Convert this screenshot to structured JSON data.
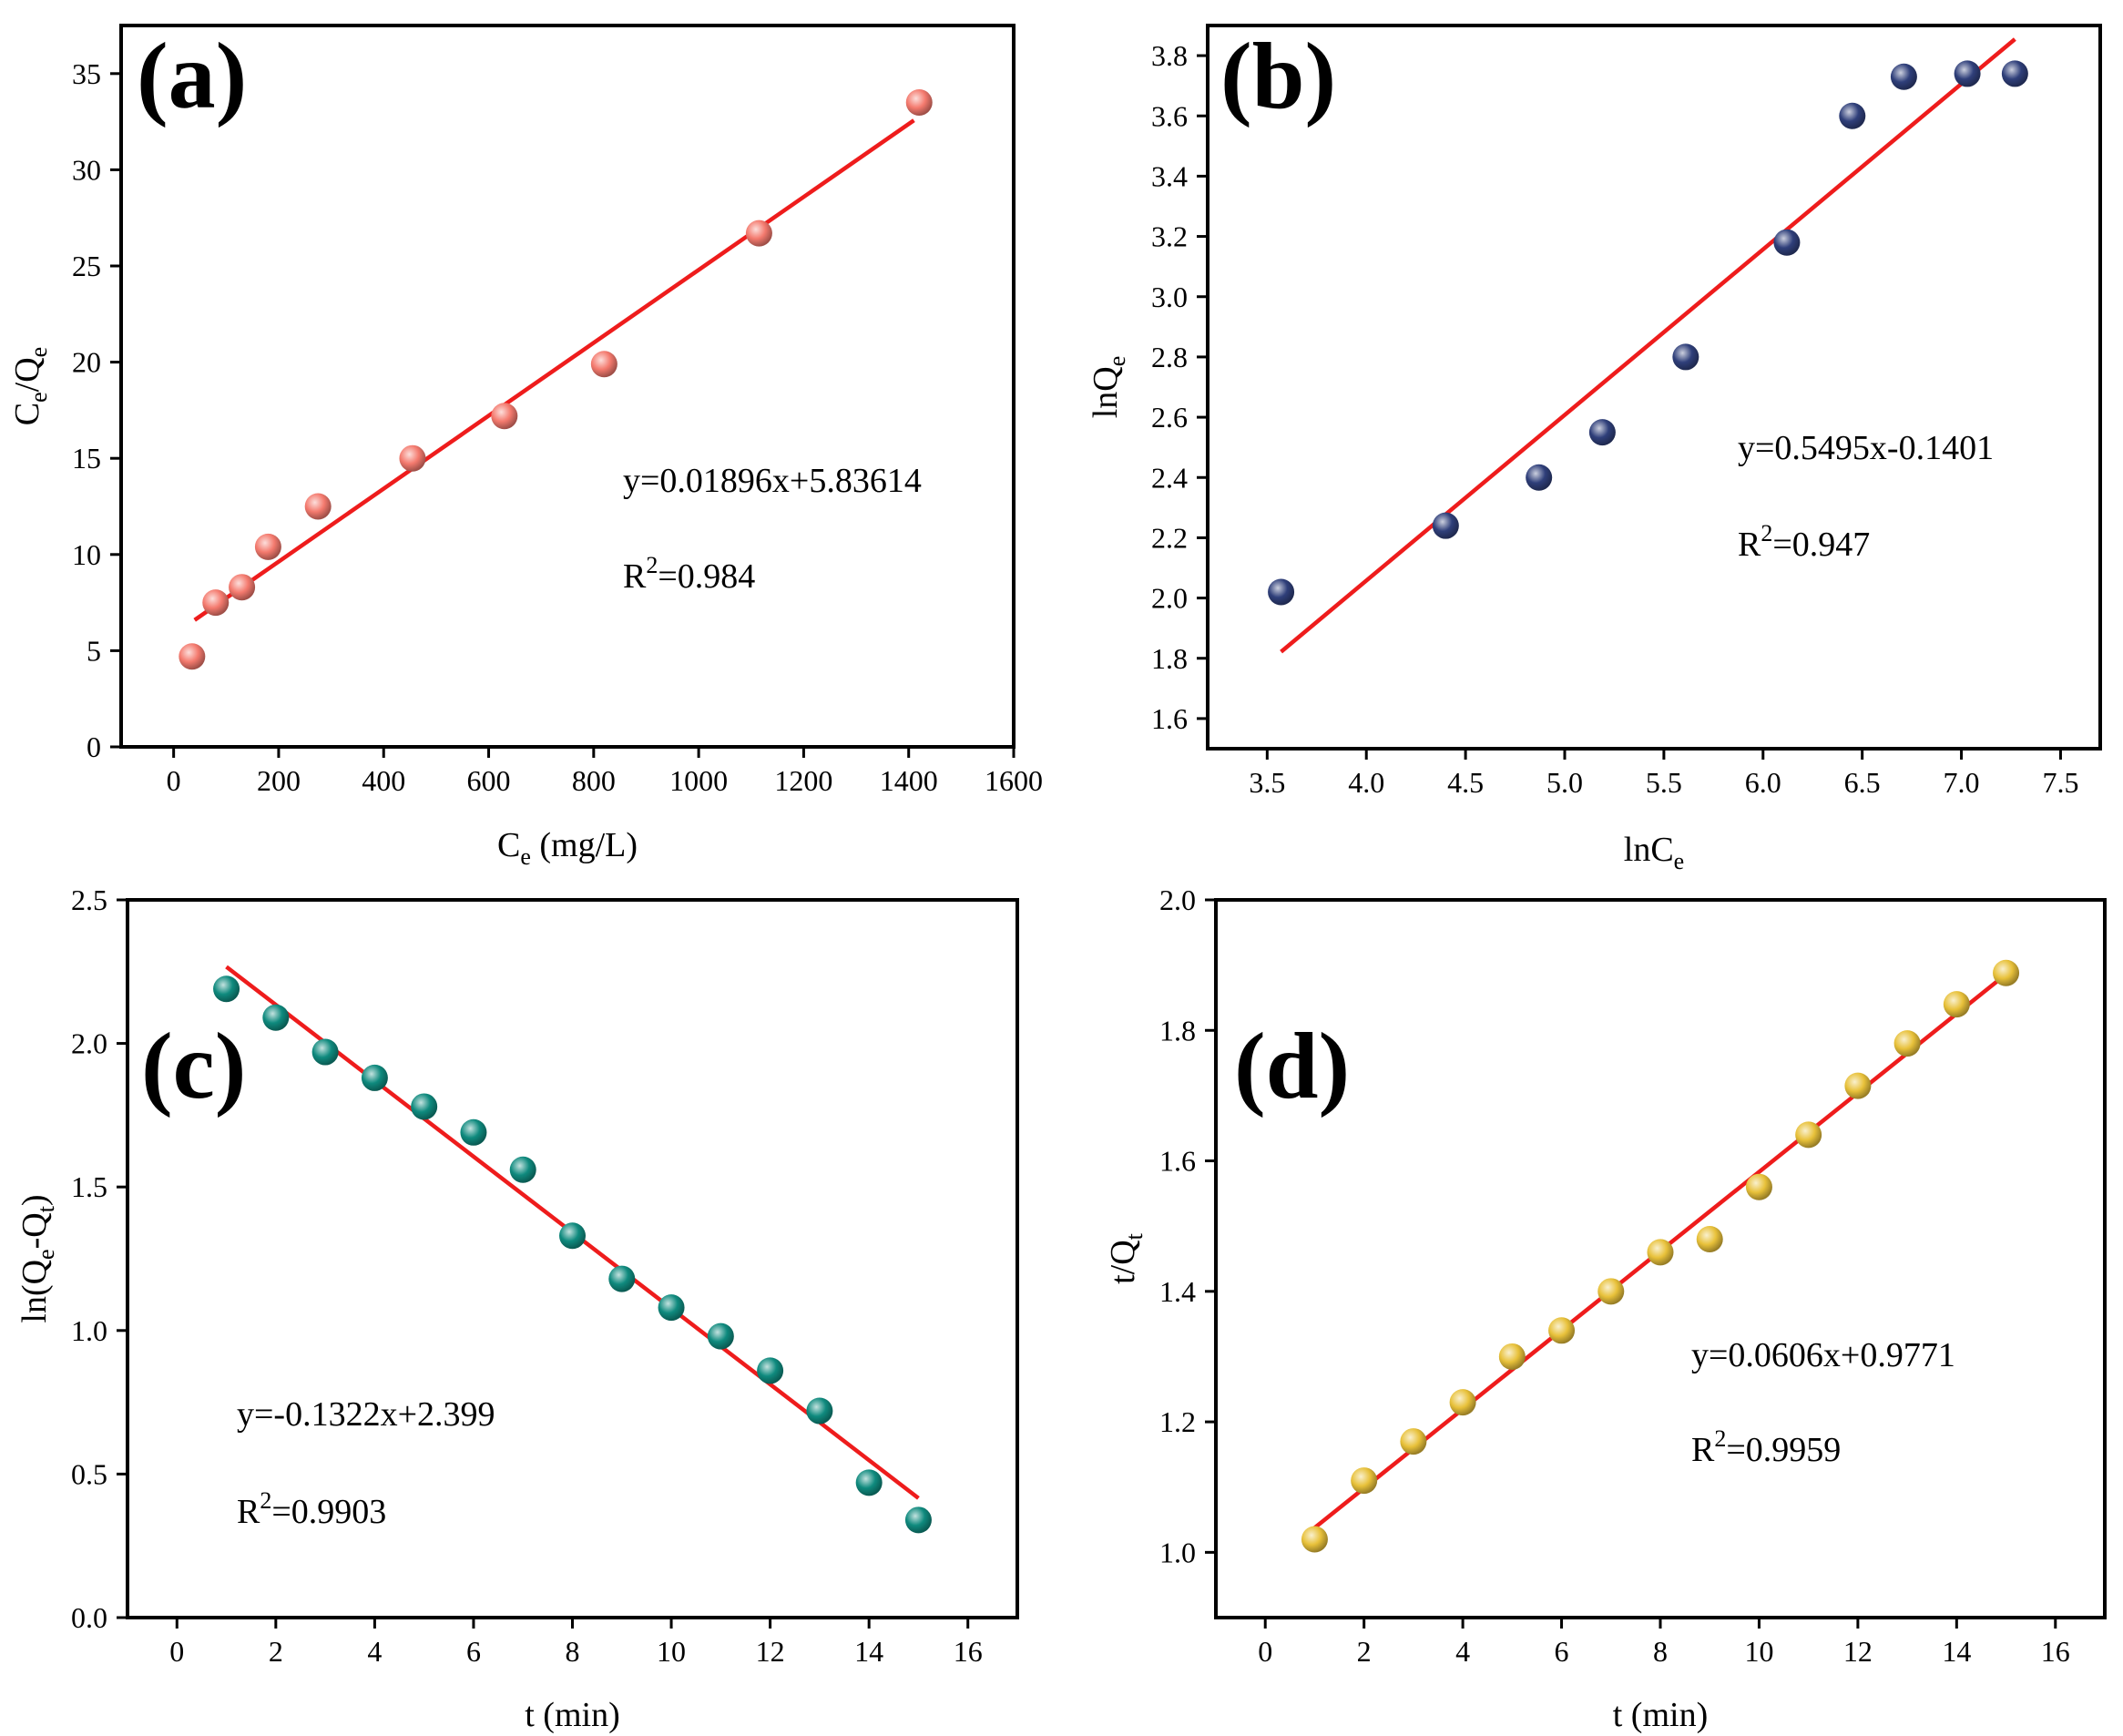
{
  "chart_data": [
    {
      "id": "a",
      "type": "scatter",
      "panel_label": "(a)",
      "xlabel": {
        "main": "C",
        "sub": "e",
        "tail": " (mg/L)"
      },
      "ylabel": {
        "a": "C",
        "a_sub": "e",
        "mid": "/Q",
        "b_sub": "e"
      },
      "xlim": [
        -100,
        1600
      ],
      "ylim": [
        0,
        37.5
      ],
      "xticks": [
        0,
        200,
        400,
        600,
        800,
        1000,
        1200,
        1400,
        1600
      ],
      "xtick_labels": [
        "0",
        "200",
        "400",
        "600",
        "800",
        "1000",
        "1200",
        "1400",
        "1600"
      ],
      "yticks": [
        0,
        5,
        10,
        15,
        20,
        25,
        30,
        35
      ],
      "ytick_labels": [
        "0",
        "5",
        "10",
        "15",
        "20",
        "25",
        "30",
        "35"
      ],
      "x": [
        35,
        80,
        130,
        180,
        275,
        455,
        630,
        820,
        1115,
        1420
      ],
      "y": [
        4.7,
        7.5,
        8.3,
        10.4,
        12.5,
        15.0,
        17.2,
        19.9,
        26.7,
        33.5
      ],
      "fit": {
        "x_start": 40,
        "x_end": 1410,
        "slope": 0.01896,
        "intercept": 5.83614
      },
      "equation": "y=0.01896x+5.83614",
      "r2": {
        "prefix": "R",
        "sup": "2",
        "value": "=0.984"
      },
      "marker_color": "#f47a6e"
    },
    {
      "id": "b",
      "type": "scatter",
      "panel_label": "(b)",
      "xlabel": {
        "main": "lnC",
        "sub": "e",
        "tail": ""
      },
      "ylabel": {
        "a": "lnQ",
        "a_sub": "e",
        "mid": "",
        "b_sub": ""
      },
      "xlim": [
        3.2,
        7.7
      ],
      "ylim": [
        1.5,
        3.9
      ],
      "xticks": [
        3.5,
        4.0,
        4.5,
        5.0,
        5.5,
        6.0,
        6.5,
        7.0,
        7.5
      ],
      "xtick_labels": [
        "3.5",
        "4.0",
        "4.5",
        "5.0",
        "5.5",
        "6.0",
        "6.5",
        "7.0",
        "7.5"
      ],
      "yticks": [
        1.6,
        1.8,
        2.0,
        2.2,
        2.4,
        2.6,
        2.8,
        3.0,
        3.2,
        3.4,
        3.6,
        3.8
      ],
      "ytick_labels": [
        "1.6",
        "1.8",
        "2.0",
        "2.2",
        "2.4",
        "2.6",
        "2.8",
        "3.0",
        "3.2",
        "3.4",
        "3.6",
        "3.8"
      ],
      "x": [
        3.57,
        4.4,
        4.87,
        5.19,
        5.61,
        6.12,
        6.45,
        6.71,
        7.03,
        7.27
      ],
      "y": [
        2.02,
        2.24,
        2.4,
        2.55,
        2.8,
        3.18,
        3.6,
        3.73,
        3.74,
        3.74
      ],
      "fit": {
        "x_start": 3.57,
        "x_end": 7.27,
        "slope": 0.5495,
        "intercept": -0.1401
      },
      "equation": "y=0.5495x-0.1401",
      "r2": {
        "prefix": "R",
        "sup": "2",
        "value": "=0.947"
      },
      "marker_color": "#2f3f7a"
    },
    {
      "id": "c",
      "type": "scatter",
      "panel_label": "(c)",
      "xlabel": {
        "main": "t (min)",
        "sub": "",
        "tail": ""
      },
      "ylabel": {
        "a": "ln(Q",
        "a_sub": "e",
        "mid": "-Q",
        "b_sub": "t",
        "end": ")"
      },
      "xlim": [
        -1,
        17
      ],
      "ylim": [
        0.0,
        2.5
      ],
      "xticks": [
        0,
        2,
        4,
        6,
        8,
        10,
        12,
        14,
        16
      ],
      "xtick_labels": [
        "0",
        "2",
        "4",
        "6",
        "8",
        "10",
        "12",
        "14",
        "16"
      ],
      "yticks": [
        0.0,
        0.5,
        1.0,
        1.5,
        2.0,
        2.5
      ],
      "ytick_labels": [
        "0.0",
        "0.5",
        "1.0",
        "1.5",
        "2.0",
        "2.5"
      ],
      "x": [
        1,
        2,
        3,
        4,
        5,
        6,
        7,
        8,
        9,
        10,
        11,
        12,
        13,
        14,
        15
      ],
      "y": [
        2.19,
        2.09,
        1.97,
        1.88,
        1.78,
        1.69,
        1.56,
        1.33,
        1.18,
        1.08,
        0.98,
        0.86,
        0.72,
        0.47,
        0.34
      ],
      "fit": {
        "x_start": 1,
        "x_end": 15,
        "slope": -0.1322,
        "intercept": 2.399
      },
      "equation": "y=-0.1322x+2.399",
      "r2": {
        "prefix": "R",
        "sup": "2",
        "value": "=0.9903"
      },
      "marker_color": "#0f8a7e"
    },
    {
      "id": "d",
      "type": "scatter",
      "panel_label": "(d)",
      "xlabel": {
        "main": "t (min)",
        "sub": "",
        "tail": ""
      },
      "ylabel": {
        "a": "t/Q",
        "a_sub": "t",
        "mid": "",
        "b_sub": ""
      },
      "xlim": [
        -1,
        17
      ],
      "ylim": [
        0.9,
        2.0
      ],
      "xticks": [
        0,
        2,
        4,
        6,
        8,
        10,
        12,
        14,
        16
      ],
      "xtick_labels": [
        "0",
        "2",
        "4",
        "6",
        "8",
        "10",
        "12",
        "14",
        "16"
      ],
      "yticks": [
        1.0,
        1.2,
        1.4,
        1.6,
        1.8,
        2.0
      ],
      "ytick_labels": [
        "1.0",
        "1.2",
        "1.4",
        "1.6",
        "1.8",
        "2.0"
      ],
      "x": [
        1,
        2,
        3,
        4,
        5,
        6,
        7,
        8,
        9,
        10,
        11,
        12,
        13,
        14,
        15
      ],
      "y": [
        1.02,
        1.11,
        1.17,
        1.23,
        1.3,
        1.34,
        1.4,
        1.46,
        1.48,
        1.56,
        1.64,
        1.715,
        1.78,
        1.84,
        1.888
      ],
      "fit": {
        "x_start": 1,
        "x_end": 15,
        "slope": 0.0606,
        "intercept": 0.9771
      },
      "equation": "y=0.0606x+0.9771",
      "r2": {
        "prefix": "R",
        "sup": "2",
        "value": "=0.9959"
      },
      "marker_color": "#e8c13a"
    }
  ],
  "colors": {
    "fit_line": "#ee1c1c",
    "frame": "#000000"
  }
}
